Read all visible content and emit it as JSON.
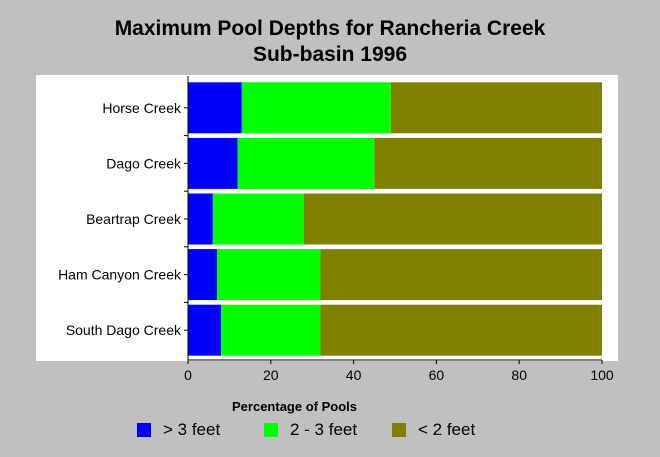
{
  "chart_data": {
    "type": "bar",
    "orientation": "horizontal",
    "stacked": true,
    "title_line1": "Maximum Pool Depths for Rancheria Creek",
    "title_line2": "Sub-basin 1996",
    "xlabel": "Percentage of Pools",
    "xlim": [
      0,
      100
    ],
    "xticks": [
      "0",
      "20",
      "40",
      "60",
      "80",
      "100"
    ],
    "categories": [
      "Horse Creek",
      "Dago Creek",
      "Beartrap Creek",
      "Ham Canyon Creek",
      "South Dago Creek"
    ],
    "series": [
      {
        "name": "> 3 feet",
        "color": "#0000ff",
        "values": [
          13,
          12,
          6,
          7,
          8
        ]
      },
      {
        "name": "2 - 3 feet",
        "color": "#00ff00",
        "values": [
          36,
          33,
          22,
          25,
          24
        ]
      },
      {
        "name": "< 2 feet",
        "color": "#808000",
        "values": [
          51,
          55,
          72,
          68,
          68
        ]
      }
    ],
    "legend_position": "bottom",
    "grid": false
  }
}
